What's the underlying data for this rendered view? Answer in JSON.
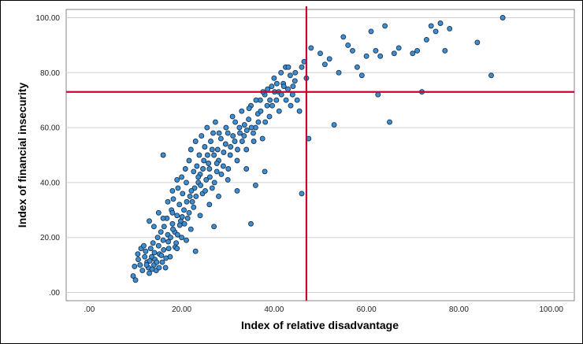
{
  "chart_data": {
    "type": "scatter",
    "xlabel": "Index of relative disadvantage",
    "ylabel": "Index of financial insecurity",
    "xlim": [
      -5,
      105
    ],
    "ylim": [
      -3,
      103
    ],
    "x_ticks": [
      0,
      20,
      40,
      60,
      80,
      100
    ],
    "x_tick_labels": [
      ".00",
      "20.00",
      "40.00",
      "60.00",
      "80.00",
      "100.00"
    ],
    "y_ticks": [
      0,
      20,
      40,
      60,
      80,
      100
    ],
    "y_tick_labels": [
      ".00",
      "20.00",
      "40.00",
      "60.00",
      "80.00",
      "100.00"
    ],
    "grid": "horizontal",
    "reference_lines": {
      "x": 47.0,
      "y": 73.0,
      "color": "#cc0033"
    },
    "marker_color": "#3d8fd1",
    "marker_edge": "#1a3350",
    "points": [
      [
        9.5,
        6
      ],
      [
        10,
        4.5
      ],
      [
        9.8,
        9.5
      ],
      [
        10.6,
        12
      ],
      [
        11,
        10
      ],
      [
        11.5,
        8
      ],
      [
        12,
        13
      ],
      [
        12.2,
        15
      ],
      [
        12.5,
        11
      ],
      [
        12.8,
        9
      ],
      [
        13,
        7
      ],
      [
        13.3,
        16
      ],
      [
        13.5,
        13
      ],
      [
        13.8,
        18
      ],
      [
        14,
        10
      ],
      [
        14.2,
        12
      ],
      [
        14.5,
        8
      ],
      [
        14.8,
        20
      ],
      [
        15,
        17
      ],
      [
        15.2,
        14
      ],
      [
        15.5,
        22
      ],
      [
        15.8,
        11
      ],
      [
        16,
        19
      ],
      [
        16.2,
        24
      ],
      [
        16.5,
        9
      ],
      [
        16.8,
        27
      ],
      [
        17,
        21
      ],
      [
        17.2,
        16
      ],
      [
        17.5,
        13
      ],
      [
        17.8,
        30
      ],
      [
        18,
        25
      ],
      [
        18.2,
        34
      ],
      [
        18.5,
        22
      ],
      [
        18.8,
        18
      ],
      [
        19,
        28
      ],
      [
        19.2,
        38
      ],
      [
        19.5,
        32
      ],
      [
        19.8,
        26
      ],
      [
        20,
        42
      ],
      [
        20.2,
        36
      ],
      [
        20.5,
        30
      ],
      [
        20.8,
        45
      ],
      [
        21,
        40
      ],
      [
        21.3,
        27
      ],
      [
        21.6,
        48
      ],
      [
        21.8,
        35
      ],
      [
        22,
        52
      ],
      [
        22.3,
        33
      ],
      [
        22.6,
        44
      ],
      [
        22.8,
        38
      ],
      [
        23,
        55
      ],
      [
        23.3,
        46
      ],
      [
        23.6,
        40
      ],
      [
        23.8,
        50
      ],
      [
        24,
        43
      ],
      [
        24.3,
        57
      ],
      [
        24.5,
        36
      ],
      [
        24.8,
        48
      ],
      [
        25,
        53
      ],
      [
        25.3,
        41
      ],
      [
        25.5,
        60
      ],
      [
        25.8,
        47
      ],
      [
        26,
        45
      ],
      [
        26.3,
        55
      ],
      [
        26.6,
        38
      ],
      [
        26.8,
        58
      ],
      [
        27,
        50
      ],
      [
        27.3,
        62
      ],
      [
        27.6,
        44
      ],
      [
        27.8,
        52
      ],
      [
        28,
        48
      ],
      [
        28.5,
        56
      ],
      [
        29,
        46
      ],
      [
        29.5,
        54
      ],
      [
        30,
        58
      ],
      [
        30.5,
        50
      ],
      [
        31,
        64
      ],
      [
        31.5,
        55
      ],
      [
        32,
        48
      ],
      [
        32.5,
        60
      ],
      [
        33,
        66
      ],
      [
        33.5,
        57
      ],
      [
        34,
        52
      ],
      [
        34.5,
        63
      ],
      [
        35,
        68
      ],
      [
        35.5,
        58
      ],
      [
        36,
        60
      ],
      [
        36.5,
        65
      ],
      [
        37,
        70
      ],
      [
        37.5,
        56
      ],
      [
        38,
        72
      ],
      [
        38.5,
        68
      ],
      [
        39,
        64
      ],
      [
        39.5,
        75
      ],
      [
        40,
        78
      ],
      [
        40.5,
        70
      ],
      [
        41,
        73
      ],
      [
        41.5,
        80
      ],
      [
        42,
        76
      ],
      [
        42.5,
        82
      ],
      [
        43,
        74
      ],
      [
        43.5,
        79
      ],
      [
        44,
        72
      ],
      [
        44.5,
        77
      ],
      [
        45,
        70
      ],
      [
        45.5,
        66
      ],
      [
        46,
        82
      ],
      [
        46.5,
        84
      ],
      [
        47,
        78
      ],
      [
        35,
        25
      ],
      [
        46,
        36
      ],
      [
        47.5,
        56
      ],
      [
        48,
        89
      ],
      [
        50,
        87
      ],
      [
        51,
        83
      ],
      [
        52,
        85
      ],
      [
        53,
        61
      ],
      [
        54,
        80
      ],
      [
        55,
        93
      ],
      [
        56,
        90
      ],
      [
        57,
        88
      ],
      [
        58,
        82
      ],
      [
        59,
        79
      ],
      [
        60,
        86
      ],
      [
        61,
        95
      ],
      [
        62,
        88
      ],
      [
        62.5,
        72
      ],
      [
        63,
        86
      ],
      [
        64,
        97
      ],
      [
        65,
        62
      ],
      [
        66,
        87
      ],
      [
        67,
        89
      ],
      [
        70,
        87
      ],
      [
        71,
        88
      ],
      [
        72,
        73
      ],
      [
        73,
        92
      ],
      [
        74,
        97
      ],
      [
        75,
        95
      ],
      [
        76,
        98
      ],
      [
        77,
        88
      ],
      [
        78,
        96
      ],
      [
        84,
        91
      ],
      [
        87,
        79
      ],
      [
        89.5,
        100
      ],
      [
        10.5,
        14
      ],
      [
        11.2,
        16
      ],
      [
        11.8,
        17
      ],
      [
        12.4,
        10
      ],
      [
        13.1,
        11.5
      ],
      [
        13.6,
        8.5
      ],
      [
        14.1,
        14.5
      ],
      [
        14.6,
        11
      ],
      [
        15.1,
        9
      ],
      [
        15.6,
        13.5
      ],
      [
        16.1,
        15.5
      ],
      [
        16.6,
        12.5
      ],
      [
        17.1,
        18.5
      ],
      [
        17.6,
        20
      ],
      [
        18.1,
        23
      ],
      [
        18.6,
        16.5
      ],
      [
        19.1,
        21
      ],
      [
        19.6,
        24.5
      ],
      [
        20.1,
        27.5
      ],
      [
        20.6,
        25
      ],
      [
        21.1,
        33
      ],
      [
        21.6,
        29
      ],
      [
        22.1,
        37
      ],
      [
        22.6,
        31
      ],
      [
        23.1,
        35
      ],
      [
        23.6,
        42
      ],
      [
        24.1,
        39
      ],
      [
        24.6,
        45
      ],
      [
        25.1,
        37
      ],
      [
        25.6,
        50
      ],
      [
        26.1,
        42
      ],
      [
        26.6,
        52
      ],
      [
        27.1,
        40
      ],
      [
        27.6,
        47
      ],
      [
        28.1,
        58
      ],
      [
        28.6,
        43
      ],
      [
        29.1,
        51
      ],
      [
        29.6,
        60
      ],
      [
        30.1,
        45
      ],
      [
        30.6,
        53
      ],
      [
        31.1,
        57
      ],
      [
        31.6,
        62
      ],
      [
        32.1,
        52
      ],
      [
        32.6,
        58
      ],
      [
        33.1,
        55
      ],
      [
        33.6,
        61
      ],
      [
        34.1,
        59
      ],
      [
        34.6,
        67
      ],
      [
        35.1,
        60
      ],
      [
        35.6,
        55
      ],
      [
        36.1,
        70
      ],
      [
        36.6,
        62
      ],
      [
        37.1,
        66
      ],
      [
        37.6,
        73
      ],
      [
        38.1,
        62
      ],
      [
        38.6,
        74
      ],
      [
        39.1,
        70
      ],
      [
        39.6,
        68
      ],
      [
        40.1,
        73
      ],
      [
        40.6,
        76
      ],
      [
        41.1,
        66
      ],
      [
        41.6,
        72
      ],
      [
        42.1,
        75
      ],
      [
        42.6,
        70
      ],
      [
        43.1,
        82
      ],
      [
        43.6,
        68
      ],
      [
        44.1,
        75
      ],
      [
        44.6,
        80
      ],
      [
        16,
        50
      ],
      [
        17,
        33
      ],
      [
        18,
        37
      ],
      [
        19,
        41
      ],
      [
        22,
        23
      ],
      [
        24,
        28
      ],
      [
        26,
        32
      ],
      [
        28,
        35
      ],
      [
        30,
        41
      ],
      [
        32,
        37
      ],
      [
        34,
        45
      ],
      [
        36,
        39
      ],
      [
        38,
        44
      ],
      [
        27,
        24
      ],
      [
        23,
        15
      ],
      [
        20,
        20
      ],
      [
        13,
        26
      ],
      [
        14,
        24
      ],
      [
        15,
        29
      ],
      [
        16,
        27
      ],
      [
        18,
        29
      ],
      [
        19,
        16
      ],
      [
        21,
        19
      ]
    ]
  }
}
